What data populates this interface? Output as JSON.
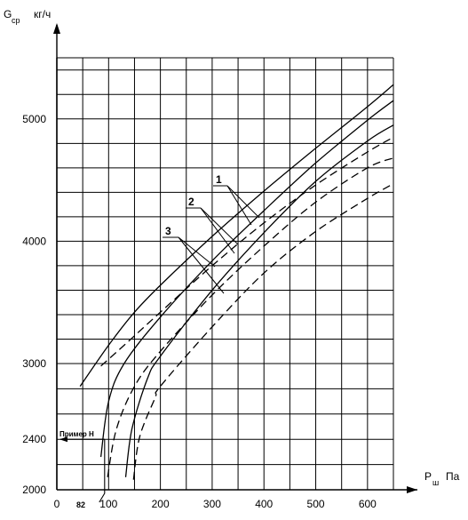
{
  "chart_data": {
    "type": "line",
    "x_axis": {
      "label_main": "P",
      "label_sub": "ш",
      "unit": "Па",
      "ticks": [
        "0",
        "100",
        "200",
        "300",
        "400",
        "500",
        "600"
      ],
      "tick_values": [
        0,
        100,
        200,
        300,
        400,
        500,
        600
      ],
      "range": [
        0,
        650
      ]
    },
    "y_axis": {
      "label_main": "G",
      "label_sub": "ср",
      "unit": "кг/ч",
      "ticks": [
        "2000",
        "2400",
        "3000",
        "4000",
        "5000"
      ],
      "tick_values": [
        2000,
        2400,
        3000,
        4000,
        5000
      ],
      "range": [
        2000,
        5500
      ]
    },
    "grid": true,
    "annotations": {
      "example_label": "Пример Н",
      "example_y": 2400,
      "example_x_label": "82",
      "example_x": 82
    },
    "curve_labels": [
      "1",
      "2",
      "3"
    ],
    "series": [
      {
        "group": "1",
        "style": "solid",
        "x": [
          45,
          100,
          150,
          200,
          300,
          400,
          500,
          600,
          650
        ],
        "y": [
          2820,
          3150,
          3420,
          3640,
          4040,
          4410,
          4760,
          5100,
          5280
        ]
      },
      {
        "group": "1",
        "style": "dashed",
        "x": [
          85,
          130,
          200,
          300,
          400,
          500,
          600,
          650
        ],
        "y": [
          2980,
          3150,
          3420,
          3800,
          4150,
          4460,
          4730,
          4850
        ]
      },
      {
        "group": "2",
        "style": "solid",
        "x": [
          85,
          100,
          130,
          200,
          300,
          400,
          500,
          600,
          650
        ],
        "y": [
          2260,
          2700,
          3000,
          3380,
          3840,
          4250,
          4640,
          4990,
          5150
        ]
      },
      {
        "group": "2",
        "style": "dashed",
        "x": [
          98,
          115,
          150,
          200,
          300,
          400,
          500,
          600,
          650
        ],
        "y": [
          2100,
          2480,
          2820,
          3100,
          3560,
          3960,
          4320,
          4600,
          4680
        ]
      },
      {
        "group": "3",
        "style": "solid",
        "x": [
          133,
          145,
          175,
          200,
          300,
          400,
          500,
          600,
          650
        ],
        "y": [
          2100,
          2480,
          2880,
          3060,
          3600,
          4070,
          4490,
          4820,
          4950
        ]
      },
      {
        "group": "3",
        "style": "dashed",
        "x": [
          148,
          160,
          190,
          200,
          300,
          400,
          500,
          600,
          650
        ],
        "y": [
          2080,
          2420,
          2730,
          2820,
          3300,
          3740,
          4080,
          4350,
          4470
        ]
      }
    ]
  }
}
